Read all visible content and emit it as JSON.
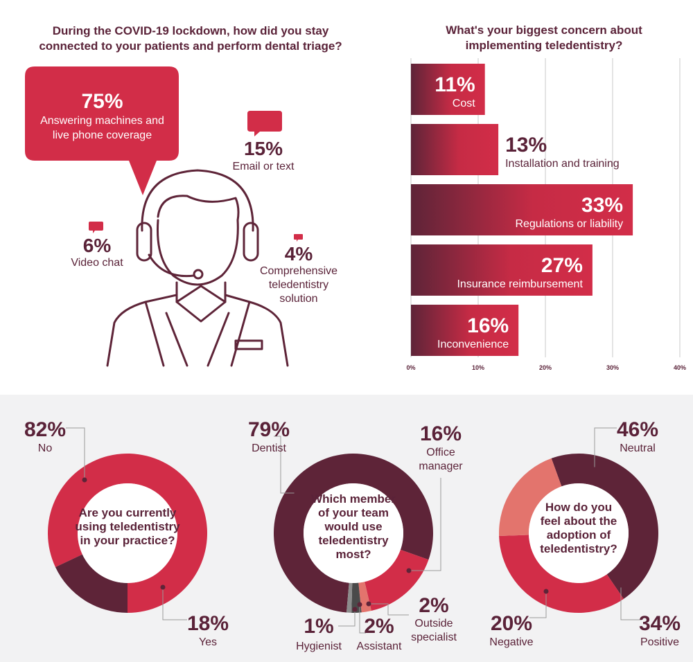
{
  "colors": {
    "dark": "#5e2438",
    "red": "#d22d48",
    "salmon": "#e3746d",
    "gray": "#8c8c8c",
    "darkgray": "#4a4a4a"
  },
  "q1": {
    "title_line1": "During the COVID-19 lockdown, how did you stay",
    "title_line2": "connected to your patients and perform dental triage?",
    "answers": [
      {
        "pct": "75%",
        "label_line1": "Answering machines and",
        "label_line2": "live phone coverage"
      },
      {
        "pct": "15%",
        "label_line1": "Email or text"
      },
      {
        "pct": "6%",
        "label_line1": "Video chat"
      },
      {
        "pct": "4%",
        "label_line1": "Comprehensive",
        "label_line2": "teledentistry",
        "label_line3": "solution"
      }
    ]
  },
  "chart_data": [
    {
      "type": "bar",
      "orientation": "horizontal",
      "title": "What's your biggest concern about implementing teledentistry?",
      "categories": [
        "Cost",
        "Installation and training",
        "Regulations or liability",
        "Insurance reimbursement",
        "Inconvenience"
      ],
      "values": [
        11,
        13,
        33,
        27,
        16
      ],
      "value_labels": [
        "11%",
        "13%",
        "33%",
        "27%",
        "16%"
      ],
      "xlim": [
        0,
        40
      ],
      "xticks": [
        "0%",
        "10%",
        "20%",
        "30%",
        "40%"
      ],
      "grid": true
    },
    {
      "type": "pie",
      "title": "Are you currently using teledentistry in your practice?",
      "slices": [
        {
          "label": "No",
          "value": 82,
          "text": "82%"
        },
        {
          "label": "Yes",
          "value": 18,
          "text": "18%"
        }
      ]
    },
    {
      "type": "pie",
      "title": "Which member of your team would use teledentistry most?",
      "slices": [
        {
          "label": "Dentist",
          "value": 79,
          "text": "79%"
        },
        {
          "label": "Office manager",
          "value": 16,
          "text": "16%"
        },
        {
          "label": "Outside specialist",
          "value": 2,
          "text": "2%"
        },
        {
          "label": "Assistant",
          "value": 2,
          "text": "2%"
        },
        {
          "label": "Hygienist",
          "value": 1,
          "text": "1%"
        }
      ]
    },
    {
      "type": "pie",
      "title": "How do you feel about the adoption of teledentistry?",
      "slices": [
        {
          "label": "Neutral",
          "value": 46,
          "text": "46%"
        },
        {
          "label": "Positive",
          "value": 34,
          "text": "34%"
        },
        {
          "label": "Negative",
          "value": 20,
          "text": "20%"
        }
      ]
    }
  ],
  "donut_text": {
    "d1": [
      "Are you currently",
      "using teledentistry",
      "in your practice?"
    ],
    "d2": [
      "Which member",
      "of your team",
      "would use",
      "teledentistry",
      "most?"
    ],
    "d3": [
      "How do you",
      "feel about the",
      "adoption of",
      "teledentistry?"
    ]
  },
  "bar_title_line1": "What's your biggest concern about",
  "bar_title_line2": "implementing teledentistry?",
  "misc": {
    "office_line1": "Office",
    "office_line2": "manager",
    "outside_line1": "Outside",
    "outside_line2": "specialist"
  }
}
